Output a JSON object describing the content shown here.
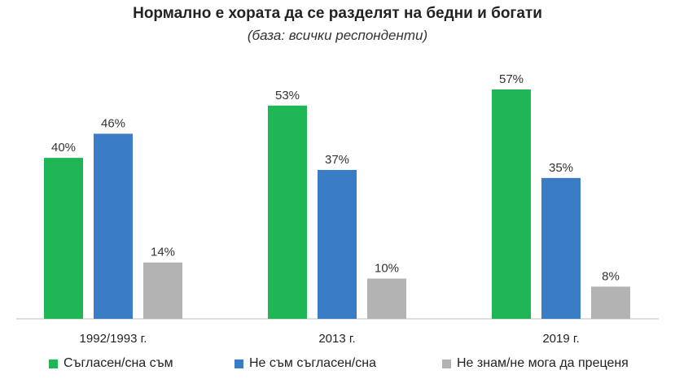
{
  "title": "Нормално е хората да се разделят на бедни и богати",
  "subtitle": "(база: всички респонденти)",
  "chart_data": {
    "type": "bar",
    "categories": [
      "1992/1993 г.",
      "2013 г.",
      "2019 г."
    ],
    "series": [
      {
        "name": "Съгласен/сна съм",
        "color": "#1fb655",
        "values": [
          40,
          53,
          57
        ],
        "labels": [
          "40%",
          "53%",
          "57%"
        ]
      },
      {
        "name": "Не съм съгласен/сна",
        "color": "#3a7cc5",
        "values": [
          46,
          37,
          35
        ],
        "labels": [
          "46%",
          "37%",
          "35%"
        ]
      },
      {
        "name": "Не знам/не мога да преценя",
        "color": "#b3b3b3",
        "values": [
          14,
          10,
          8
        ],
        "labels": [
          "14%",
          "10%",
          "8%"
        ]
      }
    ],
    "ylim": [
      0,
      57
    ],
    "grid": false,
    "legend": "bottom"
  }
}
